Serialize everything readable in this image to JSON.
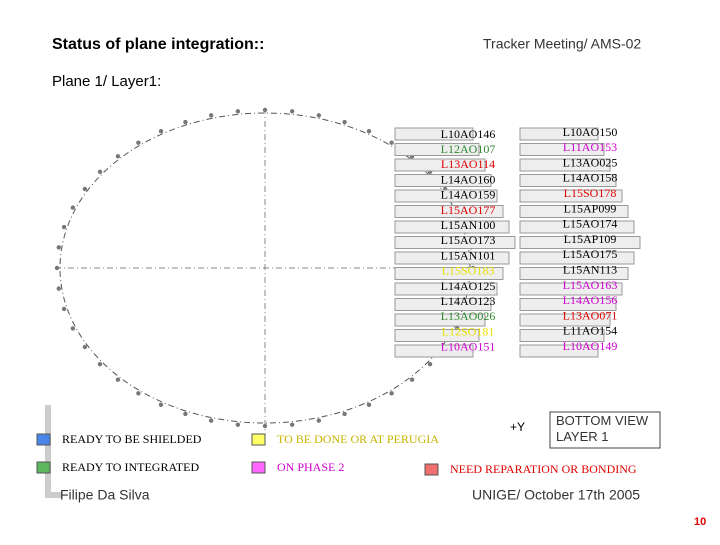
{
  "header": {
    "title": "Status of plane integration::",
    "meeting": "Tracker Meeting/ AMS-02",
    "subtitle": "Plane 1/ Layer1:"
  },
  "diagram": {
    "view_label": "BOTTOM VIEW\nLAYER 1",
    "axis_label": "+Y"
  },
  "left_ladders": [
    {
      "label": "L10AO146",
      "color": "#000000"
    },
    {
      "label": "L12AO107",
      "color": "#2e8b2e"
    },
    {
      "label": "L13AO114",
      "color": "#e00000"
    },
    {
      "label": "L14AO160",
      "color": "#000000"
    },
    {
      "label": "L14AO159",
      "color": "#000000"
    },
    {
      "label": "L15AO177",
      "color": "#e00000"
    },
    {
      "label": "L15AN100",
      "color": "#000000"
    },
    {
      "label": "L15AO173",
      "color": "#000000"
    },
    {
      "label": "L15AN101",
      "color": "#000000"
    },
    {
      "label": "L15SO183",
      "color": "#e8e000"
    },
    {
      "label": "L14AO125",
      "color": "#000000"
    },
    {
      "label": "L14AO123",
      "color": "#000000"
    },
    {
      "label": "L13AO026",
      "color": "#2e8b2e"
    },
    {
      "label": "L12SO181",
      "color": "#e8e000"
    },
    {
      "label": "L10AO151",
      "color": "#d000d0"
    }
  ],
  "right_ladders": [
    {
      "label": "L10AO150",
      "color": "#000000"
    },
    {
      "label": "L11AO153",
      "color": "#d000d0"
    },
    {
      "label": "L13AO025",
      "color": "#000000"
    },
    {
      "label": "L14AO158",
      "color": "#000000"
    },
    {
      "label": "L15SO178",
      "color": "#e00000"
    },
    {
      "label": "L15AP099",
      "color": "#000000"
    },
    {
      "label": "L15AO174",
      "color": "#000000"
    },
    {
      "label": "L15AP109",
      "color": "#000000"
    },
    {
      "label": "L15AO175",
      "color": "#000000"
    },
    {
      "label": "L15AN113",
      "color": "#000000"
    },
    {
      "label": "L15AO163",
      "color": "#d000d0"
    },
    {
      "label": "L14AO156",
      "color": "#d000d0"
    },
    {
      "label": "L13AO071",
      "color": "#e00000"
    },
    {
      "label": "L11AO154",
      "color": "#000000"
    },
    {
      "label": "L10AO149",
      "color": "#d000d0"
    }
  ],
  "legend": [
    {
      "label": "READY TO BE SHIELDED",
      "color": "#4a86e8",
      "text_color": "#000000"
    },
    {
      "label": "TO BE DONE OR AT PERUGIA",
      "color": "#ffff66",
      "text_color": "#c8b400"
    },
    {
      "label": "READY TO INTEGRATED",
      "color": "#5cb85c",
      "text_color": "#000000"
    },
    {
      "label": "ON PHASE 2",
      "color": "#ff66ff",
      "text_color": "#d000d0"
    },
    {
      "label": "NEED REPARATION OR BONDING",
      "color": "#f07070",
      "text_color": "#e00000"
    }
  ],
  "footer": {
    "author": "Filipe Da Silva",
    "venue": "UNIGE/ October 17th 2005",
    "page": "10"
  }
}
